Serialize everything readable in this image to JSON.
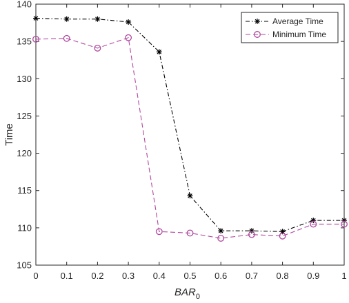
{
  "chart_data": {
    "type": "line",
    "xlabel": "BAR",
    "xlabel_subscript": "0",
    "ylabel": "Time",
    "xlim": [
      0,
      1
    ],
    "ylim": [
      105,
      140
    ],
    "x_ticks": [
      "0",
      "0.1",
      "0.2",
      "0.3",
      "0.4",
      "0.5",
      "0.6",
      "0.7",
      "0.8",
      "0.9",
      "1"
    ],
    "y_ticks": [
      "105",
      "110",
      "115",
      "120",
      "125",
      "130",
      "135",
      "140"
    ],
    "grid": false,
    "legend_position": "top-right",
    "series": [
      {
        "name": "Average Time",
        "color": "#000000",
        "marker": "asterisk",
        "line_style": "dash-dot",
        "x": [
          0,
          0.1,
          0.2,
          0.3,
          0.4,
          0.5,
          0.6,
          0.7,
          0.8,
          0.9,
          1.0
        ],
        "y": [
          138.1,
          138.0,
          138.0,
          137.6,
          133.6,
          114.3,
          109.6,
          109.6,
          109.5,
          111.0,
          111.0
        ]
      },
      {
        "name": "Minimum Time",
        "color": "#b0489e",
        "marker": "circle",
        "line_style": "dashed",
        "x": [
          0,
          0.1,
          0.2,
          0.3,
          0.4,
          0.5,
          0.6,
          0.7,
          0.8,
          0.9,
          1.0
        ],
        "y": [
          135.3,
          135.4,
          134.1,
          135.5,
          109.5,
          109.3,
          108.6,
          109.1,
          108.9,
          110.5,
          110.5
        ]
      }
    ]
  }
}
